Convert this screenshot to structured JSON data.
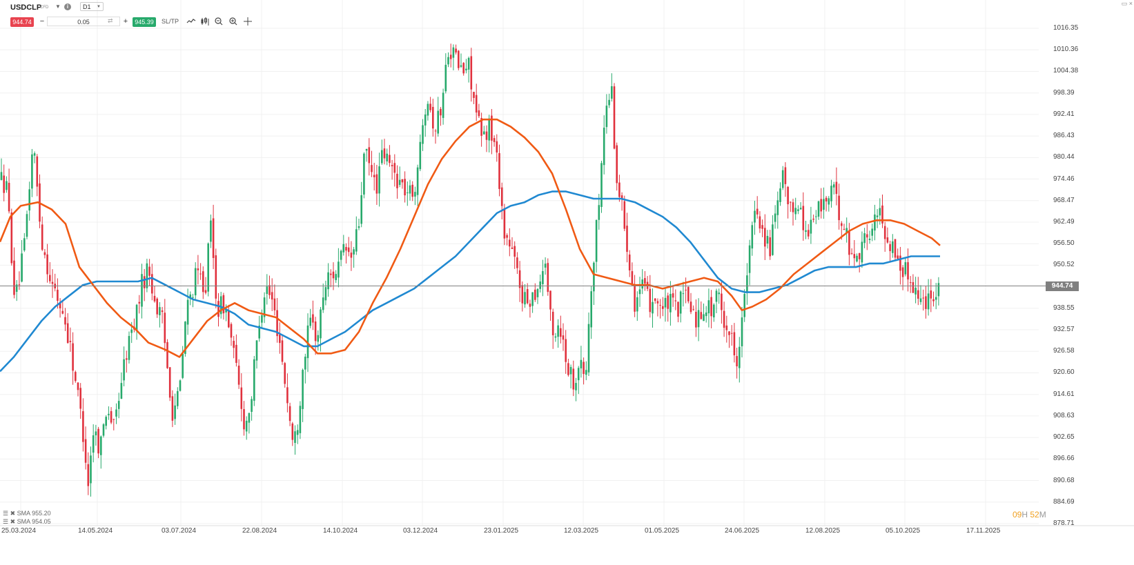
{
  "header": {
    "symbol": "USDCLP",
    "symbol_tag": "CFD",
    "timeframe": "D1",
    "sell_price": "944.74",
    "quantity": "0.05",
    "buy_price": "945.39",
    "sltp_label": "SL/TP",
    "minus_label": "−",
    "plus_label": "+"
  },
  "icons": [
    "caret-down-icon",
    "info-icon",
    "line-chart-icon",
    "candles-icon",
    "zoom-out-icon",
    "zoom-in-icon",
    "crosshair-icon",
    "swap-icon",
    "window-icon",
    "close-icon"
  ],
  "colors": {
    "bull": "#27a96b",
    "bear": "#e0313d",
    "sma_fast": "#f05a14",
    "sma_slow": "#2089d1",
    "sell_bg": "#e8434f",
    "buy_bg": "#27a96b",
    "price_line": "#7f7f7f",
    "timer_digits": "#f0a020"
  },
  "price_axis": [
    "1016.35",
    "1010.36",
    "1004.38",
    "998.39",
    "992.41",
    "986.43",
    "980.44",
    "974.46",
    "968.47",
    "962.49",
    "956.50",
    "950.52",
    "944.74",
    "938.55",
    "932.57",
    "926.58",
    "920.60",
    "914.61",
    "908.63",
    "902.65",
    "896.66",
    "890.68",
    "884.69",
    "878.71"
  ],
  "current_price": "944.74",
  "date_axis": [
    "25.03.2024",
    "14.05.2024",
    "03.07.2024",
    "22.08.2024",
    "14.10.2024",
    "03.12.2024",
    "23.01.2025",
    "12.03.2025",
    "01.05.2025",
    "24.06.2025",
    "12.08.2025",
    "05.10.2025",
    "17.11.2025"
  ],
  "legend": {
    "sma_fast_label": "SMA 955.20",
    "sma_slow_label": "SMA 954.05"
  },
  "timer": {
    "hours": "09",
    "h": "H",
    "minutes": "52",
    "m": "M"
  },
  "chart_data": {
    "type": "candlestick",
    "anchors": [
      [
        0,
        975
      ],
      [
        10,
        972
      ],
      [
        22,
        940
      ],
      [
        35,
        955
      ],
      [
        48,
        985
      ],
      [
        60,
        958
      ],
      [
        75,
        945
      ],
      [
        90,
        938
      ],
      [
        100,
        930
      ],
      [
        110,
        918
      ],
      [
        120,
        905
      ],
      [
        128,
        890
      ],
      [
        135,
        905
      ],
      [
        145,
        900
      ],
      [
        155,
        912
      ],
      [
        165,
        905
      ],
      [
        175,
        918
      ],
      [
        185,
        928
      ],
      [
        195,
        935
      ],
      [
        205,
        945
      ],
      [
        215,
        950
      ],
      [
        225,
        940
      ],
      [
        235,
        935
      ],
      [
        250,
        910
      ],
      [
        260,
        915
      ],
      [
        270,
        938
      ],
      [
        285,
        948
      ],
      [
        298,
        945
      ],
      [
        305,
        962
      ],
      [
        315,
        938
      ],
      [
        325,
        940
      ],
      [
        335,
        930
      ],
      [
        345,
        918
      ],
      [
        355,
        905
      ],
      [
        365,
        915
      ],
      [
        375,
        935
      ],
      [
        385,
        945
      ],
      [
        395,
        940
      ],
      [
        405,
        930
      ],
      [
        415,
        915
      ],
      [
        425,
        900
      ],
      [
        432,
        908
      ],
      [
        440,
        925
      ],
      [
        450,
        935
      ],
      [
        460,
        930
      ],
      [
        470,
        945
      ],
      [
        480,
        948
      ],
      [
        490,
        950
      ],
      [
        500,
        955
      ],
      [
        510,
        952
      ],
      [
        520,
        962
      ],
      [
        528,
        982
      ],
      [
        535,
        978
      ],
      [
        545,
        972
      ],
      [
        555,
        982
      ],
      [
        565,
        978
      ],
      [
        575,
        975
      ],
      [
        585,
        972
      ],
      [
        595,
        970
      ],
      [
        605,
        975
      ],
      [
        612,
        992
      ],
      [
        620,
        998
      ],
      [
        630,
        988
      ],
      [
        640,
        995
      ],
      [
        650,
        1012
      ],
      [
        660,
        1008
      ],
      [
        670,
        1004
      ],
      [
        680,
        1006
      ],
      [
        690,
        992
      ],
      [
        700,
        985
      ],
      [
        708,
        990
      ],
      [
        715,
        985
      ],
      [
        722,
        978
      ],
      [
        730,
        960
      ],
      [
        740,
        955
      ],
      [
        750,
        948
      ],
      [
        760,
        940
      ],
      [
        770,
        942
      ],
      [
        780,
        945
      ],
      [
        790,
        952
      ],
      [
        800,
        930
      ],
      [
        810,
        935
      ],
      [
        820,
        925
      ],
      [
        830,
        918
      ],
      [
        840,
        924
      ],
      [
        848,
        918
      ],
      [
        855,
        940
      ],
      [
        862,
        955
      ],
      [
        870,
        975
      ],
      [
        878,
        995
      ],
      [
        886,
        1000
      ],
      [
        893,
        975
      ],
      [
        900,
        968
      ],
      [
        910,
        955
      ],
      [
        920,
        940
      ],
      [
        930,
        945
      ],
      [
        940,
        940
      ],
      [
        950,
        942
      ],
      [
        960,
        938
      ],
      [
        970,
        940
      ],
      [
        980,
        938
      ],
      [
        990,
        942
      ],
      [
        1000,
        940
      ],
      [
        1010,
        935
      ],
      [
        1020,
        940
      ],
      [
        1030,
        938
      ],
      [
        1040,
        942
      ],
      [
        1050,
        935
      ],
      [
        1060,
        930
      ],
      [
        1068,
        925
      ],
      [
        1075,
        935
      ],
      [
        1085,
        952
      ],
      [
        1095,
        968
      ],
      [
        1105,
        960
      ],
      [
        1115,
        955
      ],
      [
        1125,
        965
      ],
      [
        1135,
        975
      ],
      [
        1145,
        965
      ],
      [
        1155,
        970
      ],
      [
        1165,
        960
      ],
      [
        1175,
        962
      ],
      [
        1185,
        966
      ],
      [
        1195,
        968
      ],
      [
        1205,
        972
      ],
      [
        1215,
        966
      ],
      [
        1225,
        960
      ],
      [
        1235,
        952
      ],
      [
        1245,
        955
      ],
      [
        1255,
        958
      ],
      [
        1265,
        962
      ],
      [
        1275,
        965
      ],
      [
        1285,
        958
      ],
      [
        1295,
        955
      ],
      [
        1305,
        950
      ],
      [
        1315,
        948
      ],
      [
        1325,
        945
      ],
      [
        1335,
        940
      ],
      [
        1345,
        942
      ],
      [
        1355,
        944
      ],
      [
        1362,
        945
      ]
    ],
    "sma_fast": [
      [
        0,
        957
      ],
      [
        15,
        964
      ],
      [
        30,
        967
      ],
      [
        55,
        968
      ],
      [
        75,
        966
      ],
      [
        95,
        962
      ],
      [
        115,
        950
      ],
      [
        135,
        945
      ],
      [
        155,
        940
      ],
      [
        175,
        936
      ],
      [
        195,
        933
      ],
      [
        215,
        929
      ],
      [
        240,
        927
      ],
      [
        260,
        925
      ],
      [
        280,
        930
      ],
      [
        300,
        935
      ],
      [
        320,
        938
      ],
      [
        340,
        940
      ],
      [
        360,
        938
      ],
      [
        380,
        937
      ],
      [
        400,
        936
      ],
      [
        420,
        933
      ],
      [
        440,
        930
      ],
      [
        460,
        926
      ],
      [
        480,
        926
      ],
      [
        500,
        927
      ],
      [
        520,
        932
      ],
      [
        540,
        940
      ],
      [
        560,
        947
      ],
      [
        580,
        955
      ],
      [
        600,
        964
      ],
      [
        620,
        973
      ],
      [
        640,
        980
      ],
      [
        660,
        985
      ],
      [
        680,
        989
      ],
      [
        700,
        991
      ],
      [
        720,
        991
      ],
      [
        740,
        989
      ],
      [
        760,
        986
      ],
      [
        780,
        982
      ],
      [
        800,
        976
      ],
      [
        820,
        966
      ],
      [
        840,
        955
      ],
      [
        860,
        948
      ],
      [
        880,
        947
      ],
      [
        900,
        946
      ],
      [
        920,
        945
      ],
      [
        940,
        945
      ],
      [
        960,
        944
      ],
      [
        980,
        945
      ],
      [
        1000,
        946
      ],
      [
        1020,
        947
      ],
      [
        1040,
        946
      ],
      [
        1060,
        942
      ],
      [
        1075,
        938
      ],
      [
        1090,
        939
      ],
      [
        1110,
        941
      ],
      [
        1130,
        944
      ],
      [
        1150,
        948
      ],
      [
        1170,
        951
      ],
      [
        1190,
        954
      ],
      [
        1210,
        957
      ],
      [
        1230,
        960
      ],
      [
        1250,
        962
      ],
      [
        1270,
        963
      ],
      [
        1290,
        963
      ],
      [
        1310,
        962
      ],
      [
        1330,
        960
      ],
      [
        1350,
        958
      ],
      [
        1362,
        956
      ]
    ],
    "sma_slow": [
      [
        0,
        921
      ],
      [
        20,
        925
      ],
      [
        40,
        930
      ],
      [
        60,
        935
      ],
      [
        80,
        939
      ],
      [
        100,
        942
      ],
      [
        120,
        945
      ],
      [
        140,
        946
      ],
      [
        160,
        946
      ],
      [
        180,
        946
      ],
      [
        200,
        946
      ],
      [
        220,
        947
      ],
      [
        240,
        945
      ],
      [
        260,
        943
      ],
      [
        280,
        941
      ],
      [
        300,
        940
      ],
      [
        320,
        939
      ],
      [
        340,
        937
      ],
      [
        360,
        934
      ],
      [
        380,
        933
      ],
      [
        400,
        932
      ],
      [
        420,
        930
      ],
      [
        440,
        928
      ],
      [
        460,
        928
      ],
      [
        480,
        930
      ],
      [
        500,
        932
      ],
      [
        520,
        935
      ],
      [
        540,
        938
      ],
      [
        560,
        940
      ],
      [
        580,
        942
      ],
      [
        600,
        944
      ],
      [
        620,
        947
      ],
      [
        640,
        950
      ],
      [
        660,
        953
      ],
      [
        680,
        957
      ],
      [
        700,
        961
      ],
      [
        720,
        965
      ],
      [
        740,
        967
      ],
      [
        760,
        968
      ],
      [
        780,
        970
      ],
      [
        800,
        971
      ],
      [
        820,
        971
      ],
      [
        840,
        970
      ],
      [
        860,
        969
      ],
      [
        880,
        969
      ],
      [
        900,
        969
      ],
      [
        920,
        968
      ],
      [
        940,
        966
      ],
      [
        960,
        964
      ],
      [
        980,
        961
      ],
      [
        1000,
        957
      ],
      [
        1020,
        952
      ],
      [
        1040,
        947
      ],
      [
        1060,
        944
      ],
      [
        1080,
        943
      ],
      [
        1100,
        943
      ],
      [
        1120,
        944
      ],
      [
        1140,
        945
      ],
      [
        1160,
        947
      ],
      [
        1180,
        949
      ],
      [
        1200,
        950
      ],
      [
        1220,
        950
      ],
      [
        1240,
        950
      ],
      [
        1260,
        951
      ],
      [
        1280,
        951
      ],
      [
        1300,
        952
      ],
      [
        1320,
        953
      ],
      [
        1340,
        953
      ],
      [
        1362,
        953
      ]
    ],
    "y_range": [
      878.71,
      1016.35
    ]
  }
}
